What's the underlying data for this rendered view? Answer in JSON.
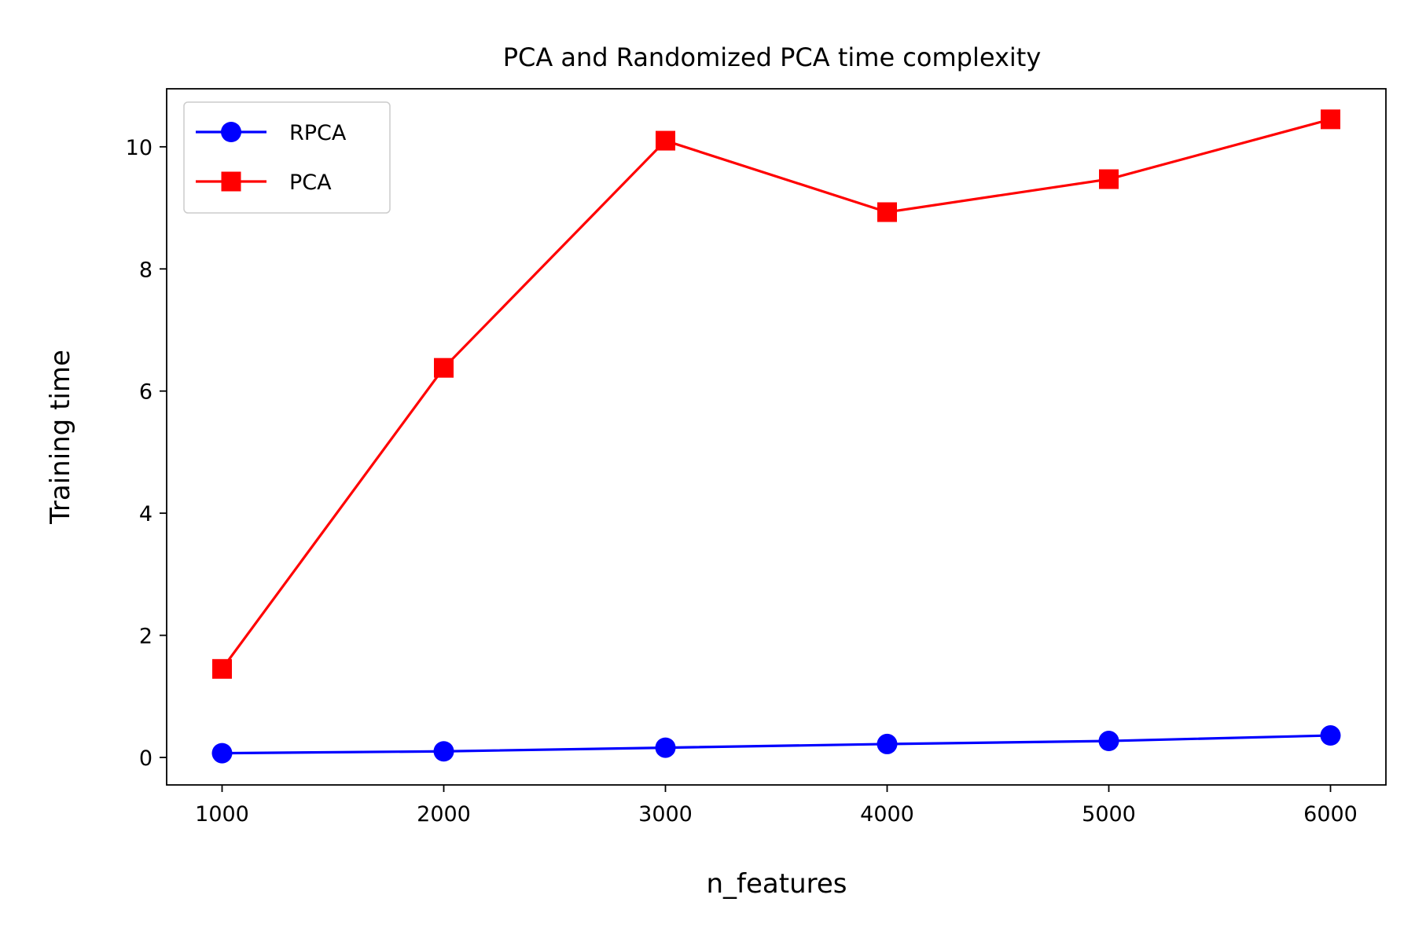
{
  "chart_data": {
    "type": "line",
    "title": "PCA and Randomized PCA time complexity",
    "xlabel": "n_features",
    "ylabel": "Training time",
    "x": [
      1000,
      2000,
      3000,
      4000,
      5000,
      6000
    ],
    "xlim": [
      750,
      6250
    ],
    "ylim": [
      -0.45,
      10.95
    ],
    "xticks": [
      1000,
      2000,
      3000,
      4000,
      5000,
      6000
    ],
    "yticks": [
      0,
      2,
      4,
      6,
      8,
      10
    ],
    "grid": false,
    "legend_position": "upper-left",
    "series": [
      {
        "name": "RPCA",
        "color": "#0000ff",
        "marker": "circle",
        "values": [
          0.07,
          0.1,
          0.16,
          0.22,
          0.27,
          0.36
        ]
      },
      {
        "name": "PCA",
        "color": "#ff0000",
        "marker": "square",
        "values": [
          1.45,
          6.38,
          10.1,
          8.93,
          9.47,
          10.45
        ]
      }
    ]
  }
}
